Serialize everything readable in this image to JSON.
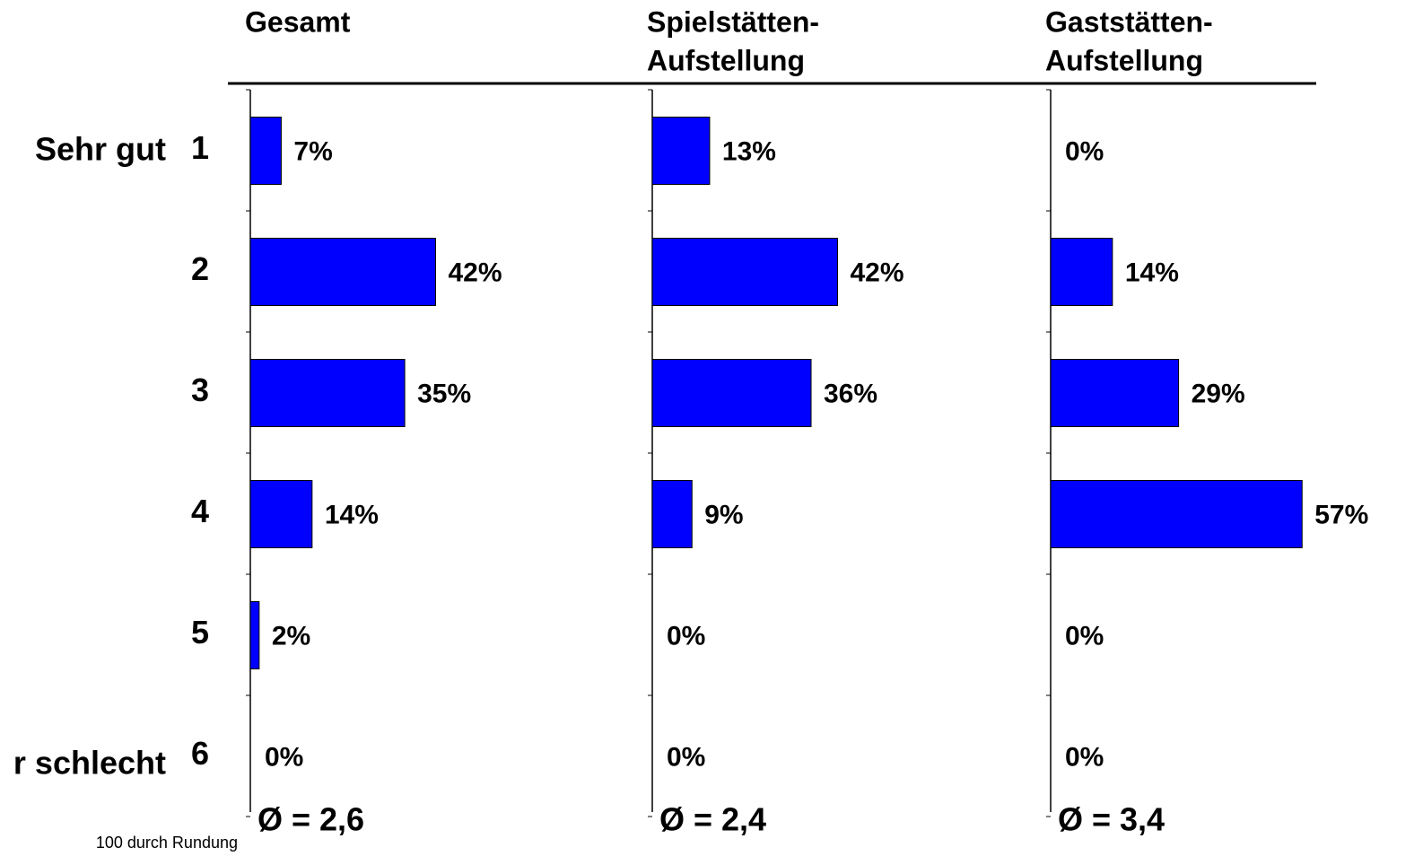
{
  "chart_data": [
    {
      "type": "bar",
      "title": [
        "Gesamt"
      ],
      "categories": [
        "1",
        "2",
        "3",
        "4",
        "5",
        "6"
      ],
      "values": [
        7,
        42,
        35,
        14,
        2,
        0
      ],
      "value_labels": [
        "7%",
        "42%",
        "35%",
        "14%",
        "2%",
        "0%"
      ],
      "annotation": "Ø = 2,6",
      "color": "#0000ff",
      "xlim": [
        0,
        60
      ]
    },
    {
      "type": "bar",
      "title": [
        "Spielstätten-",
        "Aufstellung"
      ],
      "values": [
        13,
        42,
        36,
        9,
        0,
        0
      ],
      "value_labels": [
        "13%",
        "42%",
        "36%",
        "9%",
        "0%",
        "0%"
      ],
      "annotation": "Ø = 2,4",
      "color": "#0000ff",
      "xlim": [
        0,
        60
      ]
    },
    {
      "type": "bar",
      "title": [
        "Gaststätten-",
        "Aufstellung"
      ],
      "values": [
        0,
        14,
        29,
        57,
        0,
        0
      ],
      "value_labels": [
        "0%",
        "14%",
        "29%",
        "57%",
        "0%",
        "0%"
      ],
      "annotation": "Ø = 3,4",
      "color": "#0000ff",
      "xlim": [
        0,
        60
      ]
    }
  ],
  "scale_labels": [
    "Sehr gut",
    "r schlecht"
  ],
  "footnote": "100 durch Rundung"
}
